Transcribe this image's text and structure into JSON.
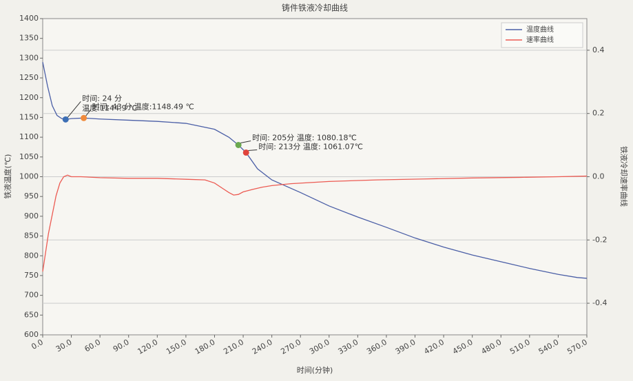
{
  "chart_data": {
    "type": "line",
    "title": "铸件铁液冷却曲线",
    "x_label": "时间(分钟)",
    "y_label": "铁液温度(℃)",
    "y2_label": "铁液冷却速率曲线",
    "xlim": [
      0,
      570
    ],
    "xticks": [
      {
        "value": 0,
        "label": "0.0"
      },
      {
        "value": 30,
        "label": "30.0"
      },
      {
        "value": 60,
        "label": "60.0"
      },
      {
        "value": 90,
        "label": "90.0"
      },
      {
        "value": 120,
        "label": "120.0"
      },
      {
        "value": 150,
        "label": "150.0"
      },
      {
        "value": 180,
        "label": "180.0"
      },
      {
        "value": 210,
        "label": "210.0"
      },
      {
        "value": 240,
        "label": "240.0"
      },
      {
        "value": 270,
        "label": "270.0"
      },
      {
        "value": 300,
        "label": "300.0"
      },
      {
        "value": 330,
        "label": "330.0"
      },
      {
        "value": 360,
        "label": "360.0"
      },
      {
        "value": 390,
        "label": "390.0"
      },
      {
        "value": 420,
        "label": "420.0"
      },
      {
        "value": 450,
        "label": "450.0"
      },
      {
        "value": 480,
        "label": "480.0"
      },
      {
        "value": 510,
        "label": "510.0"
      },
      {
        "value": 540,
        "label": "540.0"
      },
      {
        "value": 570,
        "label": "570.0"
      }
    ],
    "ylim": [
      600,
      1400
    ],
    "yticks": [
      600,
      650,
      700,
      750,
      800,
      850,
      900,
      950,
      1000,
      1050,
      1100,
      1150,
      1200,
      1250,
      1300,
      1350,
      1400
    ],
    "y2lim": [
      -0.5,
      0.5
    ],
    "y2ticks": [
      -0.4,
      -0.2,
      {
        "value": 0,
        "label": "0.0"
      },
      0.2,
      0.4
    ],
    "grid": true,
    "legend": "upper right",
    "series": [
      {
        "name": "温度曲线",
        "color": "#4a5ea6",
        "x": [
          0,
          5,
          10,
          15,
          20,
          24,
          30,
          43,
          60,
          90,
          120,
          150,
          180,
          195,
          205,
          213,
          225,
          240,
          270,
          300,
          330,
          360,
          390,
          420,
          450,
          480,
          510,
          540,
          560,
          570
        ],
        "values": [
          1290,
          1230,
          1180,
          1155,
          1147,
          1144.9,
          1147,
          1148.49,
          1146,
          1143,
          1140,
          1135,
          1120,
          1100,
          1080.18,
          1061.07,
          1020,
          992,
          960,
          926,
          898,
          872,
          845,
          822,
          802,
          785,
          768,
          753,
          745,
          743
        ]
      },
      {
        "name": "速率曲线",
        "color": "#ec5a52",
        "axis": "y2",
        "x": [
          0,
          3,
          6,
          10,
          14,
          18,
          22,
          26,
          30,
          40,
          60,
          90,
          120,
          150,
          170,
          180,
          190,
          195,
          200,
          205,
          210,
          220,
          230,
          240,
          260,
          300,
          350,
          400,
          450,
          500,
          540,
          570
        ],
        "values": [
          -0.3,
          -0.24,
          -0.18,
          -0.12,
          -0.06,
          -0.02,
          0.0,
          0.005,
          0.0,
          0.0,
          -0.003,
          -0.005,
          -0.005,
          -0.008,
          -0.01,
          -0.02,
          -0.04,
          -0.05,
          -0.058,
          -0.056,
          -0.048,
          -0.04,
          -0.033,
          -0.028,
          -0.022,
          -0.015,
          -0.01,
          -0.007,
          -0.004,
          -0.002,
          0.0,
          0.002
        ]
      }
    ],
    "annotations": [
      {
        "text": [
          "时间: 24 分",
          "温度:1144.9 ℃"
        ],
        "x": 24,
        "y": 1144.9,
        "color": "#3d6fb5"
      },
      {
        "text": [
          "时间: 43 分,温度:1148.49 ℃"
        ],
        "x": 43,
        "y": 1148.49,
        "color": "#f08a3c"
      },
      {
        "text": [
          "时间: 205分   温度: 1080.18℃"
        ],
        "x": 205,
        "y": 1080.18,
        "color": "#6aa84f"
      },
      {
        "text": [
          "时间: 213分   温度: 1061.07℃"
        ],
        "x": 213,
        "y": 1061.07,
        "color": "#e0443c"
      }
    ]
  }
}
